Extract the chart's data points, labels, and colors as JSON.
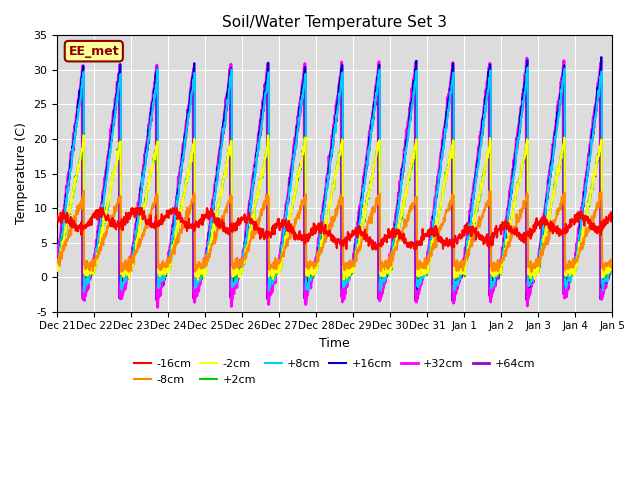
{
  "title": "Soil/Water Temperature Set 3",
  "xlabel": "Time",
  "ylabel": "Temperature (C)",
  "ylim": [
    -5,
    35
  ],
  "xlim_start": 0,
  "xlim_end": 15,
  "bg_color": "#dcdcdc",
  "grid_color": "white",
  "annotation_text": "EE_met",
  "annotation_bg": "#ffff99",
  "annotation_border": "#8B0000",
  "series": {
    "-16cm": {
      "color": "#ff0000",
      "lw": 1.5
    },
    "-8cm": {
      "color": "#ff8800",
      "lw": 1.5
    },
    "-2cm": {
      "color": "#ffff00",
      "lw": 1.5
    },
    "+2cm": {
      "color": "#00cc00",
      "lw": 1.5
    },
    "+8cm": {
      "color": "#00ccff",
      "lw": 1.5
    },
    "+16cm": {
      "color": "#0000cc",
      "lw": 1.5
    },
    "+32cm": {
      "color": "#ff00ff",
      "lw": 2.0
    },
    "+64cm": {
      "color": "#9900cc",
      "lw": 2.0
    }
  },
  "xtick_labels": [
    "Dec 21",
    "Dec 22",
    "Dec 23",
    "Dec 24",
    "Dec 25",
    "Dec 26",
    "Dec 27",
    "Dec 28",
    "Dec 29",
    "Dec 30",
    "Dec 31",
    "Jan 1",
    "Jan 2",
    "Jan 3",
    "Jan 4",
    "Jan 5"
  ],
  "xtick_positions": [
    0,
    1,
    2,
    3,
    4,
    5,
    6,
    7,
    8,
    9,
    10,
    11,
    12,
    13,
    14,
    15
  ],
  "ytick_positions": [
    -5,
    0,
    5,
    10,
    15,
    20,
    25,
    30,
    35
  ],
  "num_points": 1500
}
